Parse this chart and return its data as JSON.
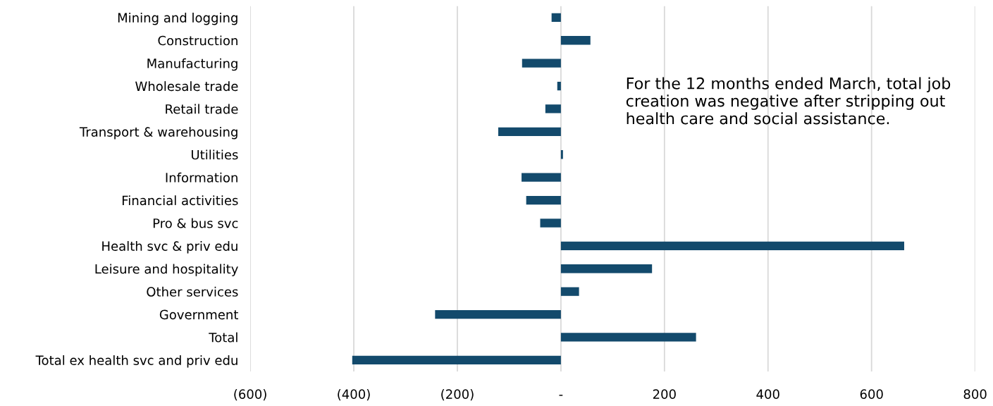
{
  "chart_data": {
    "type": "bar",
    "orientation": "horizontal",
    "categories": [
      "Mining and logging",
      "Construction",
      "Manufacturing",
      "Wholesale trade",
      "Retail trade",
      "Transport & warehousing",
      "Utilities",
      "Information",
      "Financial activities",
      "Pro & bus svc",
      "Health svc & priv edu",
      "Leisure and hospitality",
      "Other services",
      "Government",
      "Total",
      "Total ex health svc and priv edu"
    ],
    "values": [
      -18,
      57,
      -75,
      -7,
      -30,
      -121,
      4,
      -76,
      -67,
      -40,
      663,
      176,
      35,
      -243,
      261,
      -403
    ],
    "color": "#134a6c",
    "xlim": [
      -600,
      800
    ],
    "xticks": [
      {
        "value": -600,
        "label": "(600)"
      },
      {
        "value": -400,
        "label": "(400)"
      },
      {
        "value": -200,
        "label": "(200)"
      },
      {
        "value": 0,
        "label": "-"
      },
      200,
      400,
      600,
      800
    ],
    "grid": "x",
    "annotations": [
      "For the 12 months ended March, total job creation was negative after stripping out health care and social assistance."
    ]
  }
}
